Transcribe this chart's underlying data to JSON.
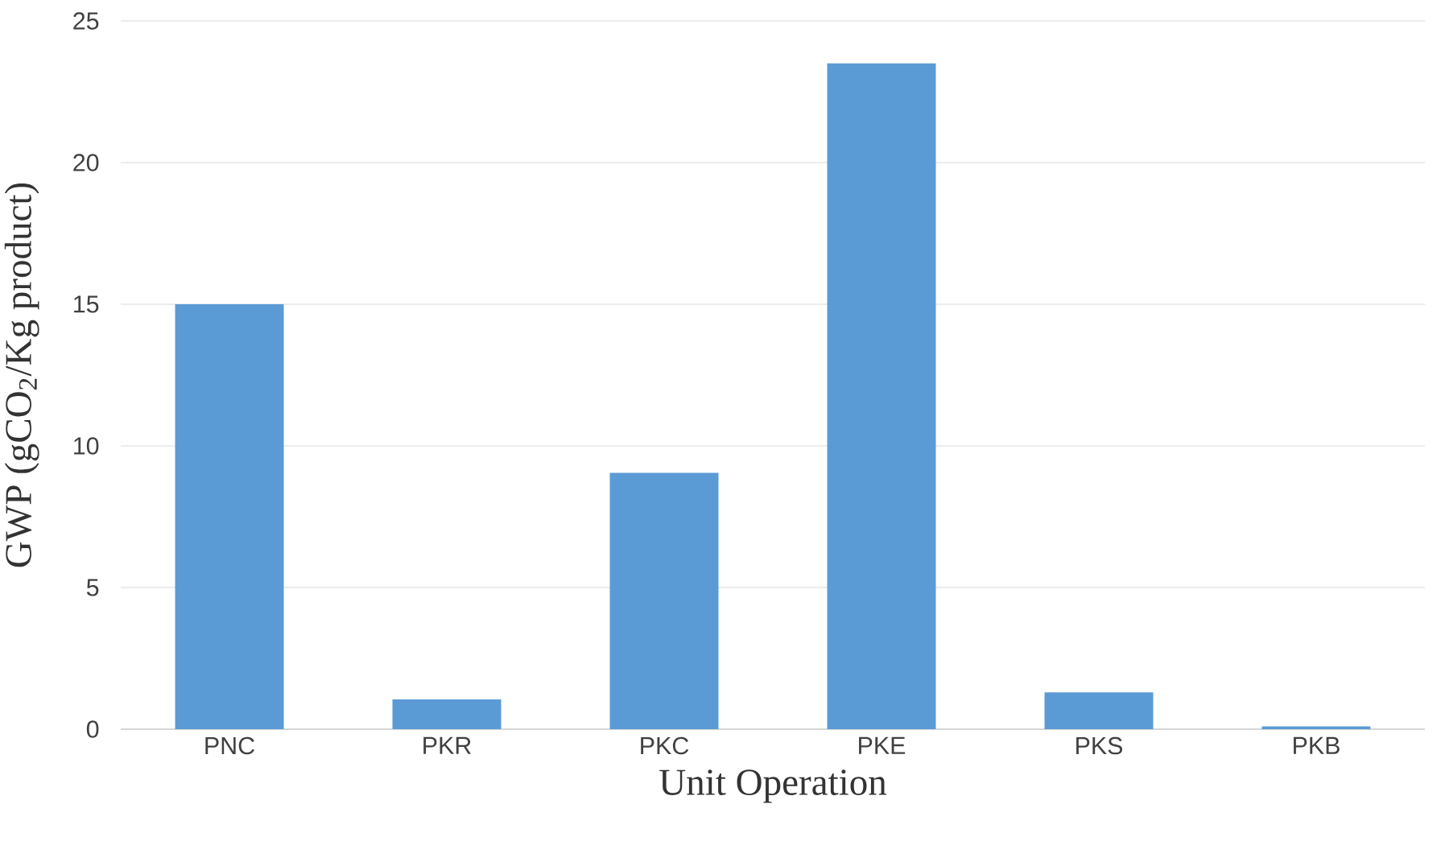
{
  "chart_data": {
    "type": "bar",
    "xlabel": "Unit Operation",
    "ylabel": "GWP (gCO$_{2}$/Kg product)",
    "categories": [
      "PNC",
      "PKR",
      "PKC",
      "PKE",
      "PKS",
      "PKB"
    ],
    "values": [
      15.0,
      1.05,
      9.05,
      23.5,
      1.3,
      0.1
    ],
    "color": "#5b9bd5",
    "ylim": [
      0,
      25
    ],
    "yticks": [
      0,
      5,
      10,
      15,
      20,
      25
    ],
    "grid": "y"
  }
}
